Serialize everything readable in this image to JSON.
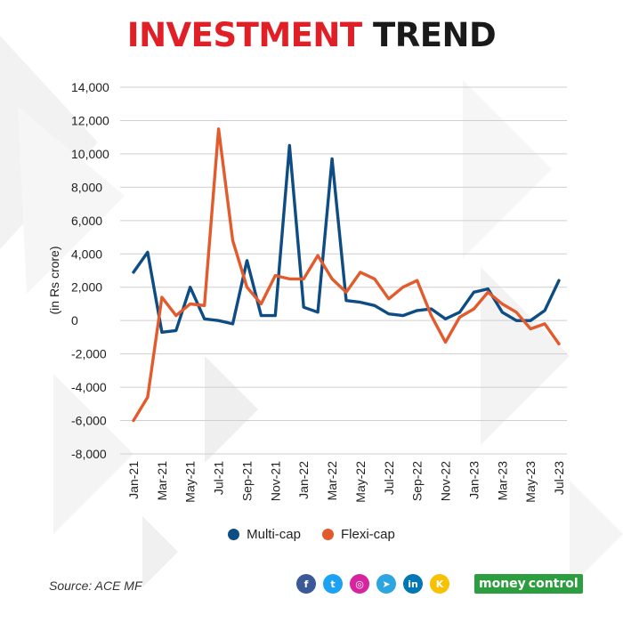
{
  "title": {
    "part1": "INVESTMENT",
    "part2": "TREND"
  },
  "chart_data": {
    "type": "line",
    "title": "INVESTMENT TREND",
    "ylabel": "(in Rs crore)",
    "xlabel": "",
    "ylim": [
      -8000,
      14000
    ],
    "yticks": [
      14000,
      12000,
      10000,
      8000,
      6000,
      4000,
      2000,
      0,
      -2000,
      -4000,
      -6000,
      -8000
    ],
    "ytick_labels": [
      "14,000",
      "12,000",
      "10,000",
      "8,000",
      "6,000",
      "4,000",
      "2,000",
      "0",
      "-2,000",
      "-4,000",
      "-6,000",
      "-8,000"
    ],
    "categories": [
      "Jan-21",
      "Feb-21",
      "Mar-21",
      "Apr-21",
      "May-21",
      "Jun-21",
      "Jul-21",
      "Aug-21",
      "Sep-21",
      "Oct-21",
      "Nov-21",
      "Dec-21",
      "Jan-22",
      "Feb-22",
      "Mar-22",
      "Apr-22",
      "May-22",
      "Jun-22",
      "Jul-22",
      "Aug-22",
      "Sep-22",
      "Oct-22",
      "Nov-22",
      "Dec-22",
      "Jan-23",
      "Feb-23",
      "Mar-23",
      "Apr-23",
      "May-23",
      "Jun-23",
      "Jul-23"
    ],
    "xtick_labels": [
      "Jan-21",
      "",
      "Mar-21",
      "",
      "May-21",
      "",
      "Jul-21",
      "",
      "Sep-21",
      "",
      "Nov-21",
      "",
      "Jan-22",
      "",
      "Mar-22",
      "",
      "May-22",
      "",
      "Jul-22",
      "",
      "Sep-22",
      "",
      "Nov-22",
      "",
      "Jan-23",
      "",
      "Mar-23",
      "",
      "May-23",
      "",
      "Jul-23"
    ],
    "grid": "horizontal",
    "legend_position": "bottom",
    "series": [
      {
        "name": "Multi-cap",
        "color": "#0e4c84",
        "values": [
          2900,
          4100,
          -700,
          -600,
          2000,
          100,
          0,
          -200,
          3600,
          300,
          300,
          10500,
          800,
          500,
          9700,
          1200,
          1100,
          900,
          400,
          300,
          600,
          700,
          100,
          500,
          1700,
          1900,
          500,
          0,
          0,
          600,
          2400
        ]
      },
      {
        "name": "Flexi-cap",
        "color": "#e35b2d",
        "values": [
          -6000,
          -4600,
          1400,
          300,
          1000,
          900,
          11500,
          4800,
          2000,
          1000,
          2700,
          2500,
          2500,
          3900,
          2500,
          1700,
          2900,
          2500,
          1300,
          2000,
          2400,
          300,
          -1300,
          200,
          700,
          1700,
          1000,
          500,
          -500,
          -200,
          -1400
        ]
      }
    ]
  },
  "legend": [
    {
      "label": "Multi-cap",
      "color": "#0e4c84"
    },
    {
      "label": "Flexi-cap",
      "color": "#e35b2d"
    }
  ],
  "source": "Source: ACE MF",
  "social_icons": [
    {
      "name": "facebook-icon",
      "glyph": "f",
      "color": "#3b5998"
    },
    {
      "name": "twitter-icon",
      "glyph": "t",
      "color": "#1da1f2"
    },
    {
      "name": "instagram-icon",
      "glyph": "◎",
      "color": "#d6249f"
    },
    {
      "name": "telegram-icon",
      "glyph": "➤",
      "color": "#2ca5e0"
    },
    {
      "name": "linkedin-icon",
      "glyph": "in",
      "color": "#0077b5"
    },
    {
      "name": "koo-icon",
      "glyph": "K",
      "color": "#f8c100"
    }
  ],
  "logo": {
    "part1": "money",
    "part2": "control"
  }
}
